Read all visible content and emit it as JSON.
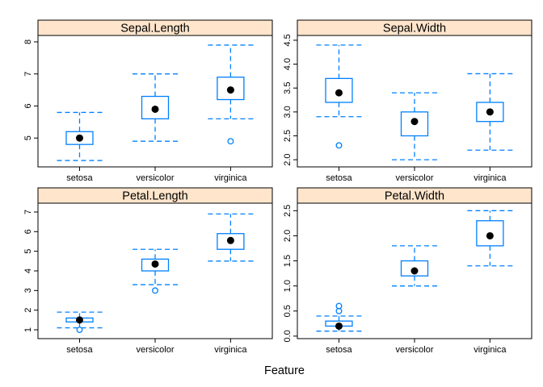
{
  "chart_data": {
    "type": "box",
    "xlabel": "Feature",
    "ylabel": "",
    "categories": [
      "setosa",
      "versicolor",
      "virginica"
    ],
    "colors": {
      "box": "#0080ff",
      "strip": "#ffe5cc",
      "median_dot": "#000000",
      "frame": "#000000"
    },
    "grid": false,
    "panels": [
      {
        "title": "Sepal.Length",
        "ylim": [
          4.1,
          8.2
        ],
        "yticks": [
          "5",
          "6",
          "7",
          "8"
        ],
        "boxes": [
          {
            "category": "setosa",
            "lower_whisker": 4.3,
            "q1": 4.8,
            "median": 5.0,
            "q3": 5.2,
            "upper_whisker": 5.8,
            "outliers": []
          },
          {
            "category": "versicolor",
            "lower_whisker": 4.9,
            "q1": 5.6,
            "median": 5.9,
            "q3": 6.3,
            "upper_whisker": 7.0,
            "outliers": []
          },
          {
            "category": "virginica",
            "lower_whisker": 5.6,
            "q1": 6.2,
            "median": 6.5,
            "q3": 6.9,
            "upper_whisker": 7.9,
            "outliers": [
              4.9
            ]
          }
        ]
      },
      {
        "title": "Sepal.Width",
        "ylim": [
          1.85,
          4.6
        ],
        "yticks": [
          "2.0",
          "2.5",
          "3.0",
          "3.5",
          "4.0",
          "4.5"
        ],
        "boxes": [
          {
            "category": "setosa",
            "lower_whisker": 2.9,
            "q1": 3.2,
            "median": 3.4,
            "q3": 3.7,
            "upper_whisker": 4.4,
            "outliers": [
              2.3
            ]
          },
          {
            "category": "versicolor",
            "lower_whisker": 2.0,
            "q1": 2.5,
            "median": 2.8,
            "q3": 3.0,
            "upper_whisker": 3.4,
            "outliers": []
          },
          {
            "category": "virginica",
            "lower_whisker": 2.2,
            "q1": 2.8,
            "median": 3.0,
            "q3": 3.2,
            "upper_whisker": 3.8,
            "outliers": []
          }
        ]
      },
      {
        "title": "Petal.Length",
        "ylim": [
          0.55,
          7.45
        ],
        "yticks": [
          "1",
          "2",
          "3",
          "4",
          "5",
          "6",
          "7"
        ],
        "boxes": [
          {
            "category": "setosa",
            "lower_whisker": 1.1,
            "q1": 1.4,
            "median": 1.5,
            "q3": 1.6,
            "upper_whisker": 1.9,
            "outliers": [
              1.0
            ]
          },
          {
            "category": "versicolor",
            "lower_whisker": 3.3,
            "q1": 4.0,
            "median": 4.35,
            "q3": 4.6,
            "upper_whisker": 5.1,
            "outliers": [
              3.0
            ]
          },
          {
            "category": "virginica",
            "lower_whisker": 4.5,
            "q1": 5.1,
            "median": 5.55,
            "q3": 5.9,
            "upper_whisker": 6.9,
            "outliers": []
          }
        ]
      },
      {
        "title": "Petal.Width",
        "ylim": [
          -0.05,
          2.65
        ],
        "yticks": [
          "0.0",
          "0.5",
          "1.0",
          "1.5",
          "2.0",
          "2.5"
        ],
        "boxes": [
          {
            "category": "setosa",
            "lower_whisker": 0.1,
            "q1": 0.2,
            "median": 0.2,
            "q3": 0.3,
            "upper_whisker": 0.4,
            "outliers": [
              0.5,
              0.6
            ]
          },
          {
            "category": "versicolor",
            "lower_whisker": 1.0,
            "q1": 1.2,
            "median": 1.3,
            "q3": 1.5,
            "upper_whisker": 1.8,
            "outliers": []
          },
          {
            "category": "virginica",
            "lower_whisker": 1.4,
            "q1": 1.8,
            "median": 2.0,
            "q3": 2.3,
            "upper_whisker": 2.5,
            "outliers": []
          }
        ]
      }
    ]
  }
}
